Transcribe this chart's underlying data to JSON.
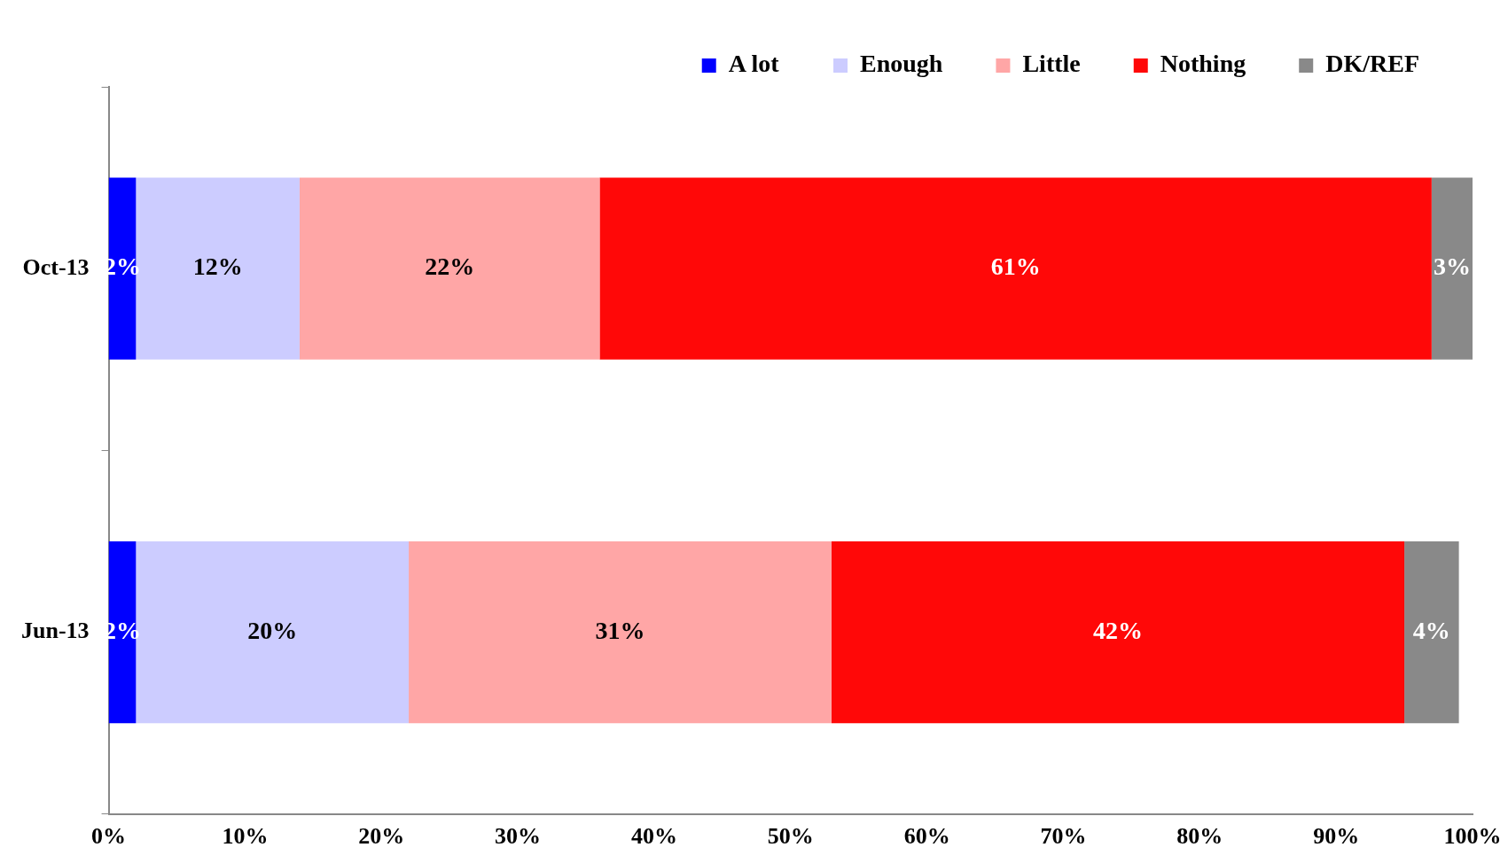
{
  "chart_data": {
    "type": "bar",
    "orientation": "horizontal",
    "stacked": true,
    "categories": [
      "Oct-13",
      "Jun-13"
    ],
    "series": [
      {
        "name": "A lot",
        "color": "#0000ff",
        "values": [
          2,
          2
        ],
        "value_labels": [
          "2%",
          "2%"
        ]
      },
      {
        "name": "Enough",
        "color": "#ccccff",
        "values": [
          12,
          20
        ],
        "value_labels": [
          "12%",
          "20%"
        ]
      },
      {
        "name": "Little",
        "color": "#ffa6a6",
        "values": [
          22,
          31
        ],
        "value_labels": [
          "22%",
          "31%"
        ]
      },
      {
        "name": "Nothing",
        "color": "#ff0808",
        "values": [
          61,
          42
        ],
        "value_labels": [
          "61%",
          "42%"
        ]
      },
      {
        "name": "DK/REF",
        "color": "#898989",
        "values": [
          3,
          4
        ],
        "value_labels": [
          "3%",
          "4%"
        ]
      }
    ],
    "xlim": [
      0,
      100
    ],
    "xticks": [
      {
        "value": 0,
        "label": "0%"
      },
      {
        "value": 10,
        "label": "10%"
      },
      {
        "value": 20,
        "label": "20%"
      },
      {
        "value": 30,
        "label": "30%"
      },
      {
        "value": 40,
        "label": "40%"
      },
      {
        "value": 50,
        "label": "50%"
      },
      {
        "value": 60,
        "label": "60%"
      },
      {
        "value": 70,
        "label": "70%"
      },
      {
        "value": 80,
        "label": "80%"
      },
      {
        "value": 90,
        "label": "90%"
      },
      {
        "value": 100,
        "label": "100%"
      }
    ],
    "grid": false,
    "legend": "top"
  }
}
